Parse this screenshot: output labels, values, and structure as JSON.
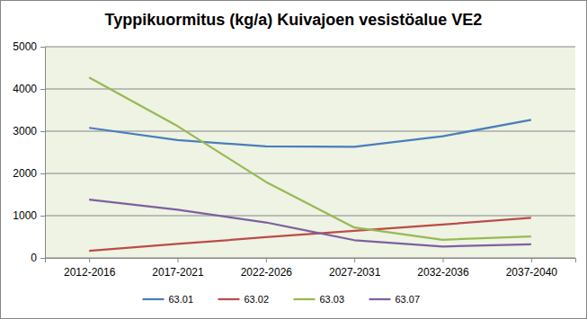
{
  "chart_data": {
    "type": "line",
    "title": "Typpikuormitus (kg/a) Kuivajoen vesistöalue VE2",
    "categories": [
      "2012-2016",
      "2017-2021",
      "2022-2026",
      "2027-2031",
      "2032-2036",
      "2037-2040"
    ],
    "series": [
      {
        "name": "63.01",
        "color": "#4a7ebb",
        "values": [
          3080,
          2790,
          2640,
          2630,
          2880,
          3270
        ]
      },
      {
        "name": "63.02",
        "color": "#be4b48",
        "values": [
          170,
          330,
          490,
          640,
          790,
          950
        ]
      },
      {
        "name": "63.03",
        "color": "#98b954",
        "values": [
          4270,
          3120,
          1800,
          720,
          430,
          510
        ]
      },
      {
        "name": "63.07",
        "color": "#7d60a0",
        "values": [
          1380,
          1140,
          840,
          420,
          270,
          320
        ]
      }
    ],
    "ylim": [
      0,
      5000
    ],
    "yticks": [
      0,
      1000,
      2000,
      3000,
      4000,
      5000
    ],
    "grid": true,
    "legend": "bottom",
    "marker": "none"
  }
}
